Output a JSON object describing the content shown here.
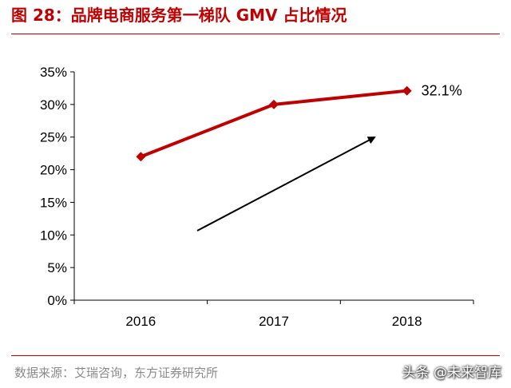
{
  "figure": {
    "title": "图 28：品牌电商服务第一梯队 GMV 占比情况",
    "source": "数据来源：艾瑞咨询，东方证券研究所",
    "watermark": "头条 @未来智库"
  },
  "colors": {
    "accent": "#c00000",
    "series": "#c00000",
    "axis": "#000000",
    "arrow": "#000000"
  },
  "chart_data": {
    "type": "line",
    "title": "",
    "xlabel": "",
    "ylabel": "",
    "categories": [
      "2016",
      "2017",
      "2018"
    ],
    "series": [
      {
        "values": [
          22,
          30,
          32.1
        ]
      }
    ],
    "ylim": [
      0,
      35
    ],
    "yticks": [
      0,
      5,
      10,
      15,
      20,
      25,
      30,
      35
    ],
    "ytick_labels": [
      "0%",
      "5%",
      "10%",
      "15%",
      "20%",
      "25%",
      "30%",
      "35%"
    ],
    "data_labels": [
      {
        "category": "2018",
        "text": "32.1%"
      }
    ],
    "grid": false,
    "legend": "none",
    "annotations": [
      {
        "type": "arrow",
        "meaning": "upward trend"
      }
    ]
  }
}
